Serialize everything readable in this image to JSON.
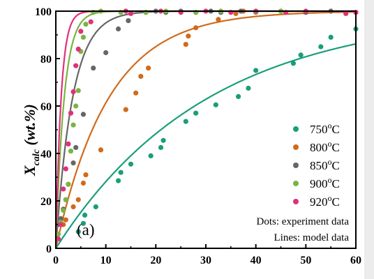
{
  "chart_data": {
    "type": "scatter",
    "title": "",
    "xlabel": "",
    "ylabel": "X",
    "ylabel_sub": "calc",
    "ylabel_suffix": " (wt.%)",
    "xlim": [
      0,
      60
    ],
    "ylim": [
      0,
      100
    ],
    "xticks": [
      0,
      10,
      20,
      30,
      40,
      50,
      60
    ],
    "yticks": [
      0,
      20,
      40,
      60,
      80,
      100
    ],
    "grid": false,
    "legend_position": "right",
    "panel_label": "(a)",
    "annotations": [
      "Dots: experiment data",
      "Lines: model data"
    ],
    "series": [
      {
        "name": "750",
        "unit": "oC",
        "color": "#1a9e7a",
        "line_k": 0.033,
        "points": [
          [
            4.5,
            7
          ],
          [
            5.5,
            10.5
          ],
          [
            5.8,
            14
          ],
          [
            8,
            17.5
          ],
          [
            12.5,
            28.5
          ],
          [
            13,
            32
          ],
          [
            15,
            35.5
          ],
          [
            19,
            39
          ],
          [
            21,
            42.5
          ],
          [
            21.5,
            45.5
          ],
          [
            26,
            53.5
          ],
          [
            28,
            57
          ],
          [
            32,
            60.5
          ],
          [
            36.5,
            64
          ],
          [
            38.5,
            67.5
          ],
          [
            40,
            75
          ],
          [
            47.5,
            78
          ],
          [
            49,
            81.5
          ],
          [
            53,
            85
          ],
          [
            55,
            89
          ],
          [
            60,
            92.5
          ]
        ]
      },
      {
        "name": "800",
        "unit": "oC",
        "color": "#d16a1b",
        "line_k": 0.095,
        "points": [
          [
            1.5,
            10
          ],
          [
            2,
            12
          ],
          [
            3.5,
            17.5
          ],
          [
            4.5,
            20.5
          ],
          [
            5.5,
            27.5
          ],
          [
            6,
            31
          ],
          [
            9,
            41.5
          ],
          [
            14,
            58.5
          ],
          [
            16,
            65.5
          ],
          [
            17,
            72.5
          ],
          [
            18.5,
            76
          ],
          [
            26,
            86
          ],
          [
            26.5,
            89.5
          ],
          [
            28,
            93
          ],
          [
            32.5,
            96.5
          ],
          [
            36,
            99
          ],
          [
            37.5,
            100
          ],
          [
            40,
            99.5
          ],
          [
            45,
            100
          ],
          [
            50,
            99.5
          ],
          [
            55,
            100
          ],
          [
            60,
            99.5
          ]
        ]
      },
      {
        "name": "850",
        "unit": "oC",
        "color": "#666666",
        "line_k": 0.3,
        "points": [
          [
            0.5,
            10
          ],
          [
            1,
            12.5
          ],
          [
            1.5,
            16.5
          ],
          [
            2,
            20.5
          ],
          [
            2.5,
            27
          ],
          [
            3.5,
            36
          ],
          [
            4,
            42.5
          ],
          [
            5.5,
            56.5
          ],
          [
            7.5,
            76
          ],
          [
            10,
            82.5
          ],
          [
            12.5,
            92.5
          ],
          [
            14.5,
            96
          ],
          [
            18,
            99.5
          ],
          [
            20,
            100
          ],
          [
            22,
            99.5
          ],
          [
            25,
            100
          ],
          [
            28,
            99.5
          ],
          [
            31,
            100
          ],
          [
            33,
            99.5
          ],
          [
            37,
            100
          ],
          [
            40,
            99.5
          ],
          [
            45,
            100
          ],
          [
            50,
            99.5
          ],
          [
            55,
            100
          ]
        ]
      },
      {
        "name": "900",
        "unit": "oC",
        "color": "#7cb342",
        "line_k": 0.6,
        "points": [
          [
            0.5,
            6
          ],
          [
            1,
            11
          ],
          [
            1.5,
            16
          ],
          [
            2,
            20.5
          ],
          [
            2.5,
            27
          ],
          [
            3,
            41
          ],
          [
            3.5,
            52
          ],
          [
            4,
            60
          ],
          [
            4.5,
            66.5
          ],
          [
            5,
            83
          ],
          [
            5.5,
            89
          ],
          [
            6,
            94.5
          ],
          [
            7.5,
            99.5
          ],
          [
            9,
            100
          ],
          [
            13,
            99.5
          ],
          [
            14,
            100
          ],
          [
            18,
            99.5
          ],
          [
            22,
            100
          ],
          [
            28,
            99.5
          ],
          [
            33,
            100
          ],
          [
            40,
            99.5
          ],
          [
            45,
            100
          ]
        ]
      },
      {
        "name": "920",
        "unit": "oC",
        "color": "#e0307a",
        "line_k": 0.95,
        "points": [
          [
            0.5,
            4
          ],
          [
            1,
            10
          ],
          [
            1.5,
            25
          ],
          [
            2,
            33.5
          ],
          [
            2.5,
            44
          ],
          [
            3,
            57
          ],
          [
            3.5,
            66
          ],
          [
            4,
            77
          ],
          [
            4.5,
            84
          ],
          [
            5,
            91.5
          ],
          [
            7,
            95.5
          ],
          [
            14,
            100
          ],
          [
            15,
            99
          ],
          [
            21,
            100
          ],
          [
            25,
            99.5
          ],
          [
            30,
            100
          ],
          [
            35,
            99.5
          ],
          [
            40,
            100
          ],
          [
            46,
            99.5
          ],
          [
            50,
            100
          ],
          [
            58,
            99
          ],
          [
            60,
            99.5
          ]
        ]
      }
    ]
  }
}
